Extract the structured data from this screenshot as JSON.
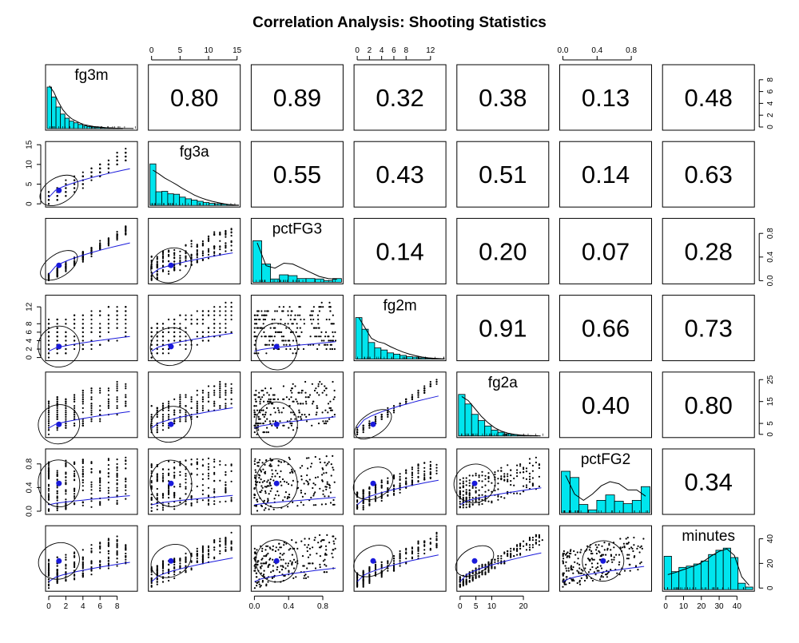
{
  "chart_data": {
    "type": "scatter",
    "title": "Correlation Analysis: Shooting Statistics",
    "variables": [
      "fg3m",
      "fg3a",
      "pctFG3",
      "fg2m",
      "fg2a",
      "pctFG2",
      "minutes"
    ],
    "diagonal": "histogram with density line",
    "upper_panels": "correlation coefficients",
    "lower_panels": "scatter points with loess smoother, correlation ellipse and mean point",
    "hist_color": "#00e5ee",
    "smooth_color": "#1a1adb",
    "mean_point_color": "#1a1adb",
    "correlations": [
      {
        "row": "fg3m",
        "col": "fg3a",
        "label": "0.80"
      },
      {
        "row": "fg3m",
        "col": "pctFG3",
        "label": "0.89"
      },
      {
        "row": "fg3m",
        "col": "fg2m",
        "label": "0.32"
      },
      {
        "row": "fg3m",
        "col": "fg2a",
        "label": "0.38"
      },
      {
        "row": "fg3m",
        "col": "pctFG2",
        "label": "0.13"
      },
      {
        "row": "fg3m",
        "col": "minutes",
        "label": "0.48"
      },
      {
        "row": "fg3a",
        "col": "pctFG3",
        "label": "0.55"
      },
      {
        "row": "fg3a",
        "col": "fg2m",
        "label": "0.43"
      },
      {
        "row": "fg3a",
        "col": "fg2a",
        "label": "0.51"
      },
      {
        "row": "fg3a",
        "col": "pctFG2",
        "label": "0.14"
      },
      {
        "row": "fg3a",
        "col": "minutes",
        "label": "0.63"
      },
      {
        "row": "pctFG3",
        "col": "fg2m",
        "label": "0.14"
      },
      {
        "row": "pctFG3",
        "col": "fg2a",
        "label": "0.20"
      },
      {
        "row": "pctFG3",
        "col": "pctFG2",
        "label": "0.07"
      },
      {
        "row": "pctFG3",
        "col": "minutes",
        "label": "0.28"
      },
      {
        "row": "fg2m",
        "col": "fg2a",
        "label": "0.91"
      },
      {
        "row": "fg2m",
        "col": "pctFG2",
        "label": "0.66"
      },
      {
        "row": "fg2m",
        "col": "minutes",
        "label": "0.73"
      },
      {
        "row": "fg2a",
        "col": "pctFG2",
        "label": "0.40"
      },
      {
        "row": "fg2a",
        "col": "minutes",
        "label": "0.80"
      },
      {
        "row": "pctFG2",
        "col": "minutes",
        "label": "0.34"
      }
    ],
    "axes": [
      {
        "variable": "fg3m",
        "range": [
          0,
          10
        ],
        "ticks": [
          0,
          2,
          4,
          6,
          8
        ],
        "position": "bottom"
      },
      {
        "variable": "fg3a",
        "range": [
          0,
          15
        ],
        "ticks": [
          0,
          5,
          10,
          15
        ],
        "position": "top"
      },
      {
        "variable": "pctFG3",
        "range": [
          0,
          1
        ],
        "ticks": [
          0.0,
          0.4,
          0.8
        ],
        "position": "bottom"
      },
      {
        "variable": "fg2m",
        "range": [
          0,
          14
        ],
        "ticks": [
          0,
          2,
          4,
          6,
          8,
          12
        ],
        "position": "top"
      },
      {
        "variable": "fg2a",
        "range": [
          0,
          27
        ],
        "ticks": [
          0,
          5,
          10,
          20
        ],
        "position": "bottom"
      },
      {
        "variable": "pctFG2",
        "range": [
          0,
          1
        ],
        "ticks": [
          0.0,
          0.4,
          0.8
        ],
        "position": "top"
      },
      {
        "variable": "minutes",
        "range": [
          0,
          48
        ],
        "ticks": [
          0,
          10,
          20,
          30,
          40
        ],
        "position": "bottom"
      }
    ],
    "y_axes": [
      {
        "variable": "fg3m",
        "ticks": [
          0,
          2,
          4,
          6,
          8
        ],
        "position": "right"
      },
      {
        "variable": "fg3a",
        "ticks": [
          0,
          5,
          10,
          15
        ],
        "position": "left"
      },
      {
        "variable": "pctFG3",
        "ticks": [
          0.0,
          0.4,
          0.8
        ],
        "position": "right"
      },
      {
        "variable": "fg2m",
        "ticks": [
          0,
          2,
          4,
          6,
          8,
          12
        ],
        "position": "left"
      },
      {
        "variable": "fg2a",
        "ticks": [
          0,
          5,
          15,
          25
        ],
        "position": "right"
      },
      {
        "variable": "pctFG2",
        "ticks": [
          0.0,
          0.4,
          0.8
        ],
        "position": "left"
      },
      {
        "variable": "minutes",
        "ticks": [
          0,
          20,
          40
        ],
        "position": "right"
      }
    ],
    "histograms": [
      {
        "variable": "fg3m",
        "edges": [
          0,
          0.5,
          1,
          1.5,
          2,
          2.5,
          3,
          3.5,
          4,
          4.5,
          5,
          5.5,
          6,
          6.5,
          7,
          7.5,
          8,
          8.5,
          9,
          9.5,
          10
        ],
        "counts": [
          100,
          76,
          52,
          35,
          25,
          18,
          14,
          10,
          7,
          5,
          4,
          3,
          2,
          2,
          1,
          1,
          1,
          0,
          0,
          0
        ],
        "density": [
          103,
          88,
          65,
          46,
          33,
          24,
          18,
          13,
          9,
          7,
          5,
          4,
          3,
          2,
          2,
          1,
          1,
          0.5,
          0.3,
          0.1
        ]
      },
      {
        "variable": "fg3a",
        "edges": [
          0,
          1,
          2,
          3,
          4,
          5,
          6,
          7,
          8,
          9,
          10,
          11,
          12,
          13,
          14,
          15
        ],
        "counts": [
          100,
          33,
          34,
          28,
          27,
          20,
          16,
          13,
          10,
          7,
          5,
          4,
          3,
          2,
          1
        ],
        "density": [
          85,
          76,
          66,
          58,
          50,
          41,
          33,
          25,
          19,
          14,
          10,
          7,
          4,
          2,
          1
        ]
      },
      {
        "variable": "pctFG3",
        "edges": [
          0,
          0.1,
          0.2,
          0.3,
          0.4,
          0.5,
          0.6,
          0.7,
          0.8,
          0.9,
          1.0
        ],
        "counts": [
          100,
          44,
          8,
          18,
          16,
          9,
          9,
          8,
          4,
          9
        ],
        "density": [
          95,
          40,
          34,
          46,
          44,
          34,
          24,
          14,
          9,
          7
        ]
      },
      {
        "variable": "fg2m",
        "edges": [
          0,
          1,
          2,
          3,
          4,
          5,
          6,
          7,
          8,
          9,
          10,
          11,
          12,
          13,
          14
        ],
        "counts": [
          100,
          72,
          40,
          27,
          22,
          15,
          12,
          9,
          6,
          5,
          3,
          2,
          1,
          1
        ],
        "density": [
          100,
          75,
          50,
          42,
          38,
          30,
          23,
          17,
          12,
          8,
          5,
          3,
          2,
          1
        ]
      },
      {
        "variable": "fg2a",
        "edges": [
          0,
          2,
          4,
          6,
          8,
          10,
          12,
          14,
          16,
          18,
          20,
          22,
          24,
          26
        ],
        "counts": [
          100,
          77,
          52,
          37,
          24,
          14,
          9,
          5,
          3,
          2,
          1,
          1,
          0
        ],
        "density": [
          95,
          85,
          66,
          47,
          32,
          20,
          12,
          7,
          4,
          2,
          1,
          0.5,
          0.2
        ]
      },
      {
        "variable": "pctFG2",
        "edges": [
          0,
          0.1,
          0.2,
          0.3,
          0.4,
          0.5,
          0.6,
          0.7,
          0.8,
          0.9,
          1.0
        ],
        "counts": [
          100,
          85,
          20,
          7,
          30,
          43,
          28,
          22,
          30,
          63
        ],
        "density": [
          90,
          45,
          30,
          45,
          65,
          75,
          70,
          55,
          55,
          40
        ]
      },
      {
        "variable": "minutes",
        "edges": [
          0,
          4,
          8,
          12,
          16,
          20,
          24,
          28,
          32,
          36,
          40,
          44,
          48
        ],
        "counts": [
          78,
          42,
          52,
          55,
          60,
          67,
          82,
          92,
          97,
          75,
          15,
          6
        ],
        "density": [
          35,
          40,
          46,
          52,
          58,
          68,
          80,
          90,
          95,
          80,
          30,
          10
        ]
      }
    ],
    "means": {
      "fg3m": 1.2,
      "fg3a": 3.4,
      "pctFG3": 0.26,
      "fg2m": 2.6,
      "fg2a": 4.6,
      "pctFG2": 0.47,
      "minutes": 22
    }
  }
}
